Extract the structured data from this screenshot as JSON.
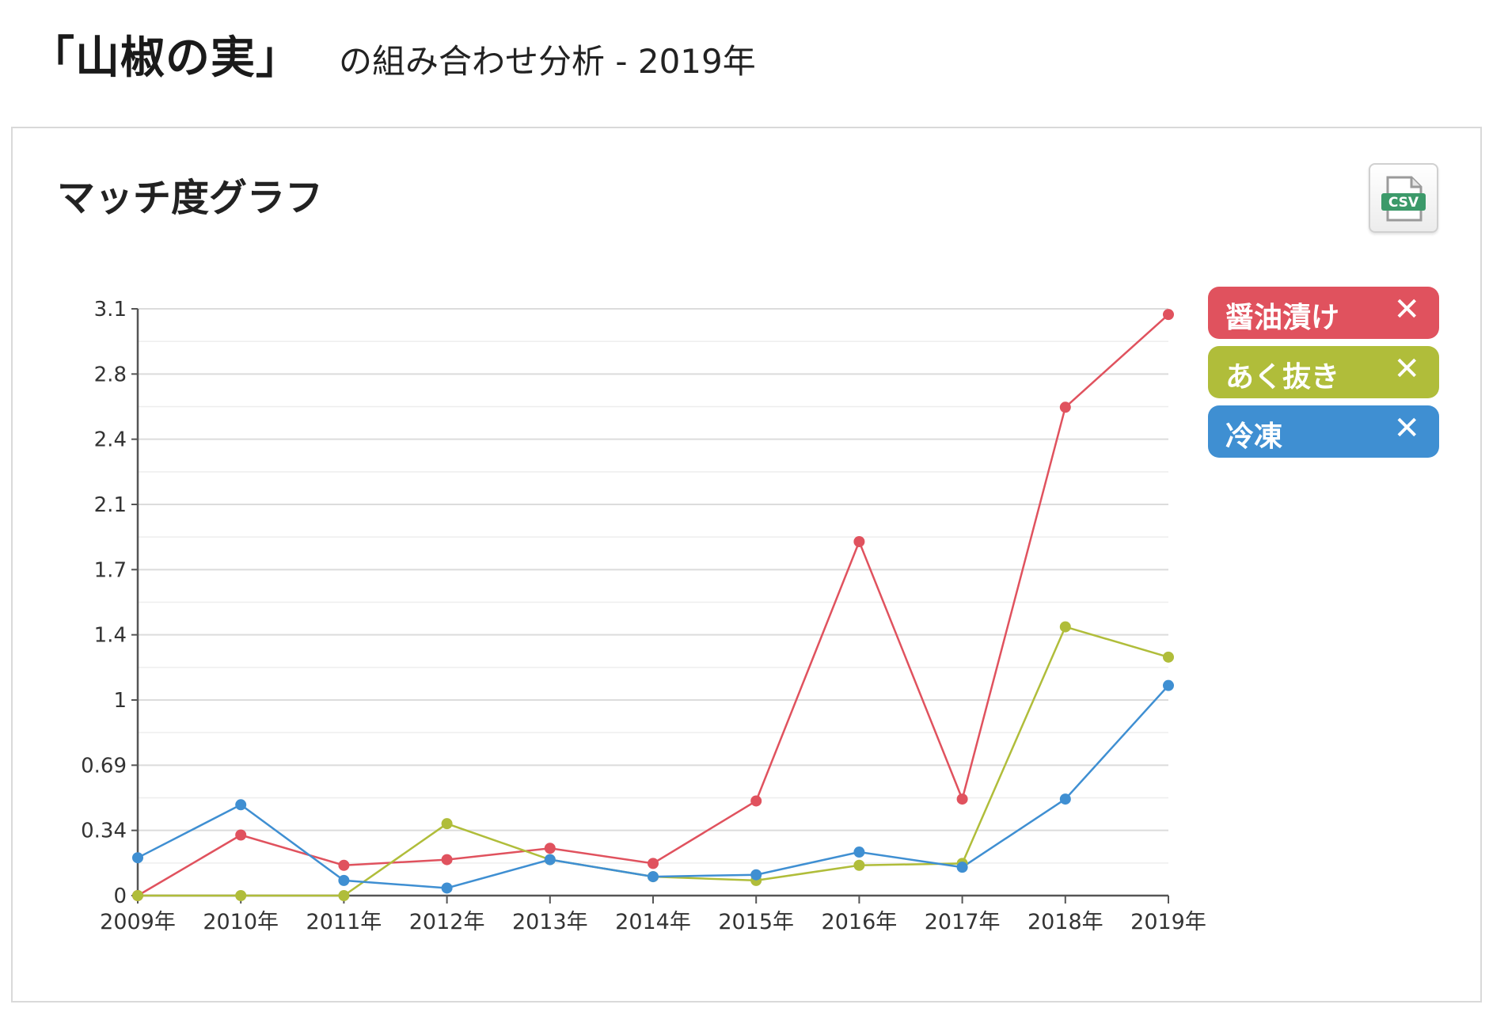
{
  "header": {
    "title": "「山椒の実」",
    "subtitle": "の組み合わせ分析 - 2019年"
  },
  "panel": {
    "title": "マッチ度グラフ",
    "csv_icon_label": "CSV"
  },
  "legend": {
    "close_glyph": "✕",
    "items": [
      {
        "label": "醤油漬け",
        "color": "#e0525e"
      },
      {
        "label": "あく抜き",
        "color": "#b0bd3a"
      },
      {
        "label": "冷凍",
        "color": "#3f8fd2"
      }
    ]
  },
  "chart_data": {
    "type": "line",
    "x": [
      "2009年",
      "2010年",
      "2011年",
      "2012年",
      "2013年",
      "2014年",
      "2015年",
      "2016年",
      "2017年",
      "2018年",
      "2019年"
    ],
    "yticks": [
      "0",
      "0.34",
      "0.69",
      "1",
      "1.4",
      "1.7",
      "2.1",
      "2.4",
      "2.8",
      "3.1"
    ],
    "ylim": [
      0,
      3.1
    ],
    "grid": true,
    "legend_position": "right",
    "series": [
      {
        "name": "醤油漬け",
        "color": "#e0525e",
        "values": [
          0,
          0.32,
          0.16,
          0.19,
          0.25,
          0.17,
          0.5,
          1.87,
          0.51,
          2.58,
          3.07
        ]
      },
      {
        "name": "あく抜き",
        "color": "#b0bd3a",
        "values": [
          0,
          0,
          0,
          0.38,
          0.19,
          0.1,
          0.08,
          0.16,
          0.17,
          1.42,
          1.26
        ]
      },
      {
        "name": "冷凍",
        "color": "#3f8fd2",
        "values": [
          0.2,
          0.48,
          0.08,
          0.04,
          0.19,
          0.1,
          0.11,
          0.23,
          0.15,
          0.51,
          1.11
        ]
      }
    ]
  }
}
